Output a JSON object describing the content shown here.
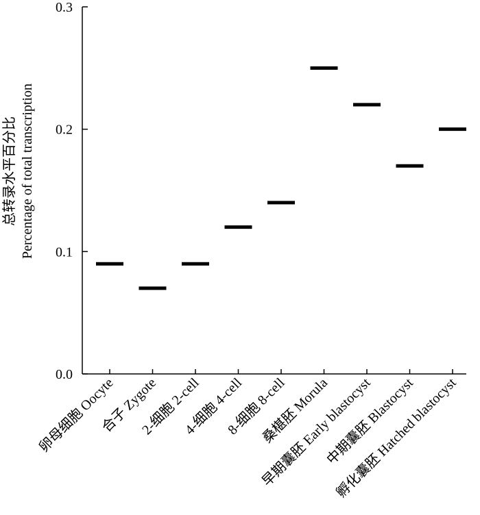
{
  "chart_data": {
    "type": "scatter",
    "marker": "horizontal-bar",
    "categories": [
      "卵母细胞 Oocyte",
      "合子 Zygote",
      "2-细胞 2-cell",
      "4-细胞 4-cell",
      "8-细胞 8-cell",
      "桑椹胚 Morula",
      "早期囊胚 Early blastocyst",
      "中期囊胚 Blastocyst",
      "孵化囊胚 Hatched blastocyst"
    ],
    "values": [
      0.09,
      0.07,
      0.09,
      0.12,
      0.14,
      0.25,
      0.22,
      0.17,
      0.2
    ],
    "ylabel_cn": "总转录水平百分比",
    "ylabel_en": "Percentage of total transcription",
    "ylim": [
      0.0,
      0.3
    ],
    "yticks": [
      "0.0",
      "0.1",
      "0.2",
      "0.3"
    ],
    "color": "#000000",
    "grid": false
  }
}
